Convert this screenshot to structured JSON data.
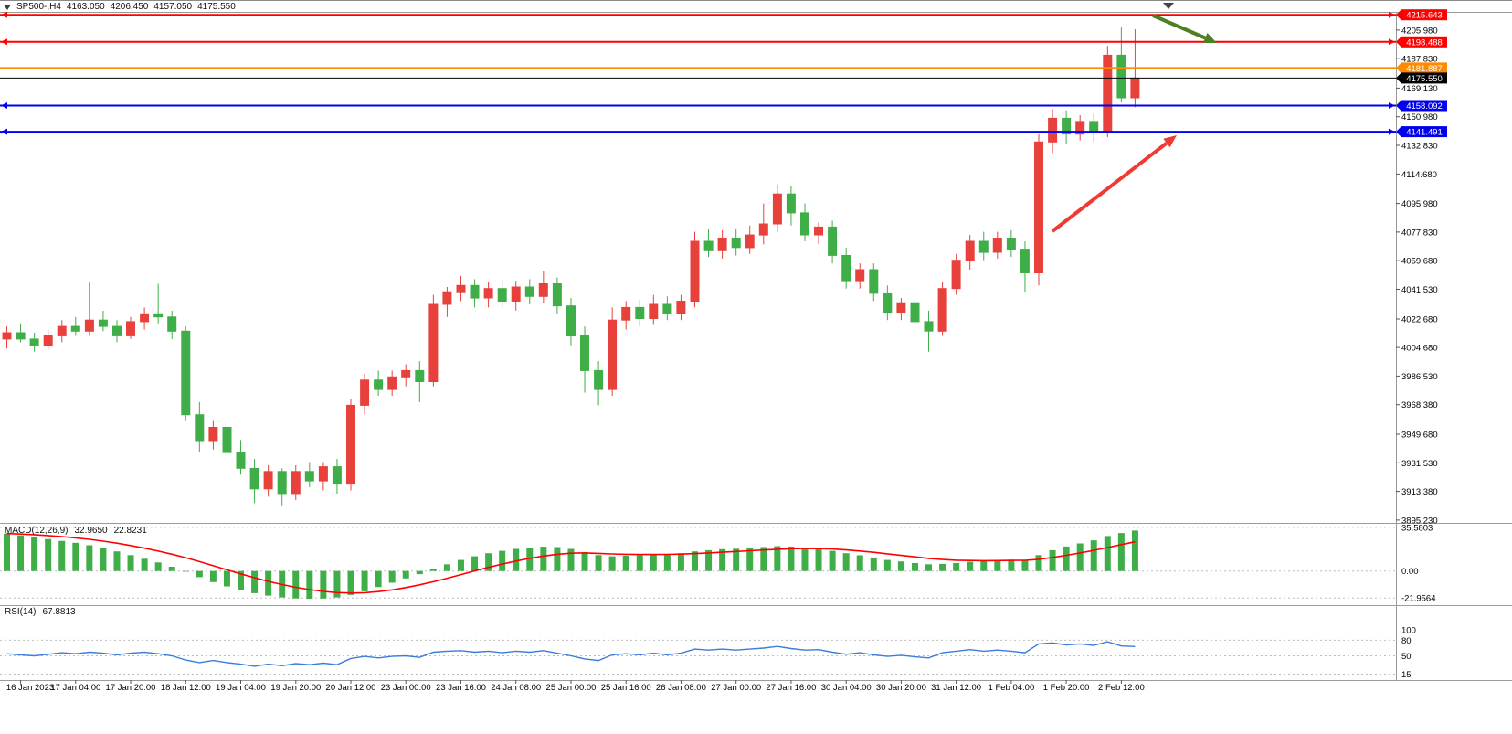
{
  "header": {
    "symbol_period": "SP500-,H4",
    "open": "4163.050",
    "high": "4206.450",
    "low": "4157.050",
    "close": "4175.550"
  },
  "colors": {
    "candle_up": "#e8413c",
    "candle_down": "#3fae49",
    "macd_histogram": "#3fae49",
    "macd_signal": "#ff0000",
    "rsi_line": "#3b7dd8",
    "line_red": "#ff0000",
    "line_orange": "#ff8a00",
    "line_blue": "#0000ee",
    "line_black": "#000000",
    "arrow_green": "#4e7f23",
    "arrow_red": "#ee3b33"
  },
  "chart_data": {
    "type": "candlestick",
    "symbol": "SP500-",
    "timeframe": "H4",
    "ylim": [
      3894,
      4217.5
    ],
    "last_bar": {
      "open": 4163.05,
      "high": 4206.45,
      "low": 4157.05,
      "close": 4175.55
    },
    "candles": [
      [
        4010,
        4018,
        4004,
        4014
      ],
      [
        4014,
        4020,
        4008,
        4010
      ],
      [
        4010,
        4014,
        4002,
        4006
      ],
      [
        4006,
        4016,
        4003,
        4012
      ],
      [
        4012,
        4022,
        4008,
        4018
      ],
      [
        4018,
        4024,
        4012,
        4015
      ],
      [
        4015,
        4046,
        4012,
        4022
      ],
      [
        4022,
        4028,
        4015,
        4018
      ],
      [
        4018,
        4022,
        4008,
        4012
      ],
      [
        4012,
        4024,
        4010,
        4021
      ],
      [
        4021,
        4030,
        4016,
        4026
      ],
      [
        4026,
        4045,
        4020,
        4024
      ],
      [
        4024,
        4028,
        4010,
        4015
      ],
      [
        4015,
        4018,
        3958,
        3962
      ],
      [
        3962,
        3970,
        3938,
        3945
      ],
      [
        3945,
        3958,
        3940,
        3954
      ],
      [
        3954,
        3956,
        3934,
        3938
      ],
      [
        3938,
        3946,
        3924,
        3928
      ],
      [
        3928,
        3934,
        3906,
        3915
      ],
      [
        3915,
        3930,
        3910,
        3926
      ],
      [
        3926,
        3928,
        3904,
        3912
      ],
      [
        3912,
        3930,
        3908,
        3926
      ],
      [
        3926,
        3932,
        3916,
        3920
      ],
      [
        3920,
        3932,
        3914,
        3929
      ],
      [
        3929,
        3934,
        3912,
        3918
      ],
      [
        3918,
        3972,
        3914,
        3968
      ],
      [
        3968,
        3988,
        3962,
        3984
      ],
      [
        3984,
        3990,
        3974,
        3978
      ],
      [
        3978,
        3990,
        3974,
        3986
      ],
      [
        3986,
        3994,
        3980,
        3990
      ],
      [
        3990,
        3996,
        3970,
        3983
      ],
      [
        3983,
        4038,
        3980,
        4032
      ],
      [
        4032,
        4043,
        4024,
        4040
      ],
      [
        4040,
        4050,
        4034,
        4044
      ],
      [
        4044,
        4048,
        4030,
        4036
      ],
      [
        4036,
        4046,
        4030,
        4042
      ],
      [
        4042,
        4048,
        4030,
        4034
      ],
      [
        4034,
        4047,
        4028,
        4043
      ],
      [
        4043,
        4048,
        4032,
        4037
      ],
      [
        4037,
        4053,
        4033,
        4045
      ],
      [
        4045,
        4049,
        4026,
        4031
      ],
      [
        4031,
        4036,
        4006,
        4012
      ],
      [
        4012,
        4018,
        3976,
        3990
      ],
      [
        3990,
        3996,
        3968,
        3978
      ],
      [
        3978,
        4030,
        3974,
        4022
      ],
      [
        4022,
        4034,
        4016,
        4030
      ],
      [
        4030,
        4035,
        4018,
        4023
      ],
      [
        4023,
        4038,
        4019,
        4032
      ],
      [
        4032,
        4037,
        4022,
        4026
      ],
      [
        4026,
        4038,
        4022,
        4034
      ],
      [
        4034,
        4078,
        4030,
        4072
      ],
      [
        4072,
        4080,
        4062,
        4066
      ],
      [
        4066,
        4079,
        4061,
        4074
      ],
      [
        4074,
        4080,
        4063,
        4068
      ],
      [
        4068,
        4082,
        4064,
        4076
      ],
      [
        4076,
        4096,
        4070,
        4083
      ],
      [
        4083,
        4108,
        4078,
        4102
      ],
      [
        4102,
        4107,
        4082,
        4090
      ],
      [
        4090,
        4096,
        4072,
        4076
      ],
      [
        4076,
        4084,
        4070,
        4081
      ],
      [
        4081,
        4085,
        4058,
        4063
      ],
      [
        4063,
        4068,
        4042,
        4047
      ],
      [
        4047,
        4058,
        4042,
        4054
      ],
      [
        4054,
        4058,
        4034,
        4039
      ],
      [
        4039,
        4044,
        4022,
        4027
      ],
      [
        4027,
        4036,
        4022,
        4033
      ],
      [
        4033,
        4036,
        4012,
        4021
      ],
      [
        4021,
        4028,
        4002,
        4015
      ],
      [
        4015,
        4046,
        4012,
        4042
      ],
      [
        4042,
        4064,
        4038,
        4060
      ],
      [
        4060,
        4076,
        4054,
        4072
      ],
      [
        4072,
        4078,
        4060,
        4065
      ],
      [
        4065,
        4078,
        4061,
        4074
      ],
      [
        4074,
        4079,
        4062,
        4067
      ],
      [
        4067,
        4072,
        4040,
        4052
      ],
      [
        4052,
        4140,
        4044,
        4135
      ],
      [
        4135,
        4156,
        4128,
        4150
      ],
      [
        4150,
        4155,
        4134,
        4140
      ],
      [
        4140,
        4152,
        4136,
        4148
      ],
      [
        4148,
        4153,
        4135,
        4142
      ],
      [
        4142,
        4196,
        4138,
        4190
      ],
      [
        4190,
        4208,
        4160,
        4163
      ],
      [
        4163.05,
        4206.45,
        4157.05,
        4175.55
      ]
    ],
    "hlines": [
      {
        "label": "4215.643",
        "price": 4215.643,
        "color": "#ff0000",
        "width": 2,
        "end_markers": true
      },
      {
        "label": "4198.488",
        "price": 4198.488,
        "color": "#ff0000",
        "width": 2,
        "end_markers": true
      },
      {
        "label": "4181.887",
        "price": 4181.887,
        "color": "#ff8a00",
        "width": 2,
        "end_markers": false
      },
      {
        "label": "4175.550",
        "price": 4175.55,
        "color": "#000000",
        "width": 1,
        "end_markers": false
      },
      {
        "label": "4158.092",
        "price": 4158.092,
        "color": "#0000ee",
        "width": 2,
        "end_markers": true
      },
      {
        "label": "4141.491",
        "price": 4141.491,
        "color": "#0000ee",
        "width": 2,
        "end_markers": true
      }
    ],
    "price_axis": {
      "ticks": [
        "4205.980",
        "4187.830",
        "4169.130",
        "4150.980",
        "4132.830",
        "4114.680",
        "4095.980",
        "4077.830",
        "4059.680",
        "4041.530",
        "4022.680",
        "4004.680",
        "3986.530",
        "3968.380",
        "3949.680",
        "3931.530",
        "3913.380",
        "3895.230"
      ]
    },
    "time_axis": {
      "start_bar": 1,
      "step": 4,
      "labels": [
        "16 Jan 2023",
        "17 Jan 04:00",
        "17 Jan 20:00",
        "18 Jan 12:00",
        "19 Jan 04:00",
        "19 Jan 20:00",
        "20 Jan 12:00",
        "23 Jan 00:00",
        "23 Jan 16:00",
        "24 Jan 08:00",
        "25 Jan 00:00",
        "25 Jan 16:00",
        "26 Jan 08:00",
        "27 Jan 00:00",
        "27 Jan 16:00",
        "30 Jan 04:00",
        "30 Jan 20:00",
        "31 Jan 12:00",
        "1 Feb 04:00",
        "1 Feb 20:00",
        "2 Feb 12:00"
      ]
    },
    "macd": {
      "name": "MACD(12,26,9)",
      "main_value": "32.9650",
      "signal_value": "22.8231",
      "ticks": [
        "35.5803",
        "0.00",
        "-21.9564"
      ],
      "ylim": [
        -27,
        38.5
      ],
      "values": [
        30.5,
        29,
        27.5,
        26,
        24.5,
        23,
        21,
        18.5,
        16,
        13,
        10,
        7,
        3.5,
        -0.5,
        -5,
        -9,
        -12.5,
        -15.5,
        -18,
        -20,
        -21.5,
        -22.3,
        -22.6,
        -22.4,
        -21.5,
        -19.5,
        -16.5,
        -13,
        -9.5,
        -6,
        -2.5,
        1.5,
        5.5,
        9,
        12,
        14.5,
        16.5,
        18,
        19,
        19.8,
        19.5,
        18,
        15.5,
        13,
        12,
        12.5,
        13,
        13.5,
        14,
        14.5,
        16,
        17,
        17.8,
        18.2,
        18.8,
        19.5,
        20.3,
        20,
        19,
        18,
        16.5,
        14.5,
        12.8,
        11,
        9,
        7.8,
        6.5,
        5.5,
        5.8,
        6.5,
        7.5,
        8,
        8.8,
        9.2,
        9,
        13,
        17,
        20,
        22.5,
        25,
        28.5,
        31,
        32.965
      ]
    },
    "rsi": {
      "name": "RSI(14)",
      "value": "67.8813",
      "ticks": [
        "100",
        "80",
        "50",
        "15"
      ],
      "levels": [
        80,
        50,
        15
      ],
      "values": [
        54,
        52,
        50,
        53,
        56,
        54,
        57,
        55,
        52,
        55,
        57,
        54,
        50,
        42,
        37,
        41,
        37,
        34,
        30,
        34,
        31,
        35,
        33,
        36,
        33,
        45,
        49,
        46,
        49,
        50,
        47,
        57,
        59,
        60,
        57,
        59,
        56,
        59,
        57,
        60,
        55,
        50,
        44,
        41,
        52,
        54,
        52,
        55,
        52,
        55,
        63,
        61,
        63,
        61,
        63,
        65,
        68,
        64,
        61,
        62,
        57,
        53,
        56,
        52,
        49,
        51,
        48,
        46,
        56,
        59,
        62,
        59,
        61,
        59,
        56,
        73,
        75,
        71,
        73,
        70,
        77,
        69,
        67.88
      ]
    },
    "annotations": [
      {
        "shape": "arrow",
        "color": "#4e7f23",
        "from": [
          1262,
          16
        ],
        "to": [
          1332,
          46
        ]
      },
      {
        "shape": "arrow",
        "color": "#ee3b33",
        "from": [
          1152,
          252
        ],
        "to": [
          1288,
          147
        ]
      }
    ],
    "shift_marker": {
      "x": 1279
    }
  }
}
